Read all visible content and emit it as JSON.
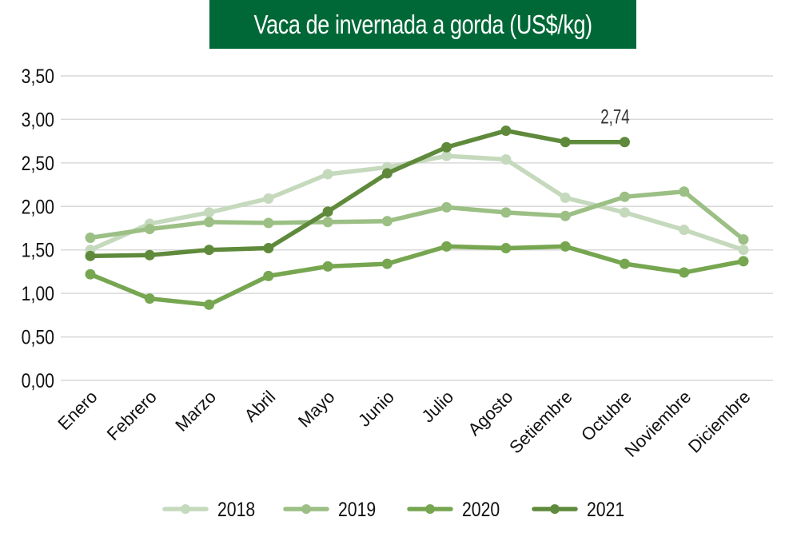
{
  "chart_data": {
    "type": "line",
    "title": "Vaca de invernada a gorda (US$/kg)",
    "xlabel": "",
    "ylabel": "",
    "ylim": [
      0,
      3.5
    ],
    "yticks": [
      "0,00",
      "0,50",
      "1,00",
      "1,50",
      "2,00",
      "2,50",
      "3,00",
      "3,50"
    ],
    "ytick_values": [
      0,
      0.5,
      1.0,
      1.5,
      2.0,
      2.5,
      3.0,
      3.5
    ],
    "grid": true,
    "legend_position": "bottom-center",
    "categories": [
      "Enero",
      "Febrero",
      "Marzo",
      "Abril",
      "Mayo",
      "Junio",
      "Julio",
      "Agosto",
      "Setiembre",
      "Octubre",
      "Noviembre",
      "Diciembre"
    ],
    "series": [
      {
        "name": "2018",
        "color": "#c5d9bd",
        "values": [
          1.5,
          1.8,
          1.93,
          2.09,
          2.37,
          2.45,
          2.58,
          2.54,
          2.1,
          1.93,
          1.73,
          1.5
        ]
      },
      {
        "name": "2019",
        "color": "#9bbf84",
        "values": [
          1.64,
          1.74,
          1.82,
          1.81,
          1.82,
          1.83,
          1.99,
          1.93,
          1.89,
          2.11,
          2.17,
          1.62
        ]
      },
      {
        "name": "2020",
        "color": "#76a650",
        "values": [
          1.22,
          0.94,
          0.87,
          1.2,
          1.31,
          1.34,
          1.54,
          1.52,
          1.54,
          1.34,
          1.24,
          1.37
        ]
      },
      {
        "name": "2021",
        "color": "#5f8a3c",
        "values": [
          1.43,
          1.44,
          1.5,
          1.52,
          1.94,
          2.38,
          2.68,
          2.87,
          2.74,
          2.74,
          null,
          null
        ]
      }
    ],
    "annotations": [
      {
        "series": "2021",
        "category": "Octubre",
        "text": "2,74"
      }
    ]
  }
}
